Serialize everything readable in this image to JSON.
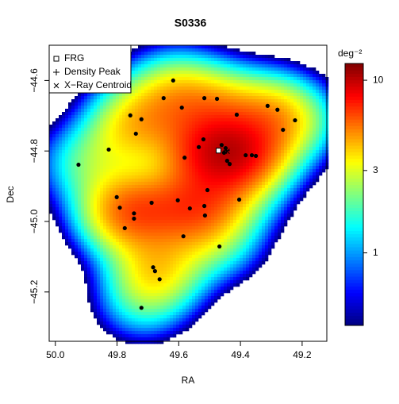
{
  "chart_data": {
    "type": "density_scatter",
    "title": "S0336",
    "xlabel": "RA",
    "ylabel": "Dec",
    "xlim": [
      50.02,
      49.12
    ],
    "ylim": [
      -45.34,
      -44.5
    ],
    "xticks": [
      {
        "value": 50.0,
        "label": "50.0"
      },
      49.8,
      49.6,
      49.4,
      49.2
    ],
    "yticks": [
      {
        "value": -44.6,
        "label": "−44.6"
      },
      {
        "value": -44.8,
        "label": "−44.8"
      },
      {
        "value": -45.0,
        "label": "−45.0"
      },
      {
        "value": -45.2,
        "label": "−45.2"
      }
    ],
    "points": {
      "color": "#000000",
      "x": [
        49.618,
        49.649,
        49.517,
        49.476,
        49.59,
        49.757,
        49.721,
        49.739,
        49.827,
        49.925,
        49.412,
        49.312,
        49.28,
        49.223,
        49.262,
        49.52,
        49.535,
        49.581,
        49.461,
        49.448,
        49.453,
        49.443,
        49.435,
        49.383,
        49.363,
        49.35,
        49.507,
        49.801,
        49.791,
        49.603,
        49.688,
        49.745,
        49.745,
        49.564,
        49.517,
        49.404,
        49.515,
        49.775,
        49.585,
        49.468,
        49.683,
        49.677,
        49.662,
        49.721
      ],
      "y": [
        -44.6,
        -44.65,
        -44.65,
        -44.652,
        -44.677,
        -44.699,
        -44.71,
        -44.751,
        -44.796,
        -44.839,
        -44.697,
        -44.672,
        -44.683,
        -44.713,
        -44.74,
        -44.767,
        -44.789,
        -44.819,
        -44.783,
        -44.792,
        -44.805,
        -44.828,
        -44.837,
        -44.812,
        -44.812,
        -44.814,
        -44.911,
        -44.931,
        -44.961,
        -44.94,
        -44.947,
        -44.977,
        -44.992,
        -44.963,
        -44.956,
        -44.938,
        -44.983,
        -45.019,
        -45.042,
        -45.071,
        -45.13,
        -45.141,
        -45.164,
        -45.245
      ]
    },
    "markers": [
      {
        "name": "FRG",
        "symbol": "square",
        "x": 49.471,
        "y": -44.799
      },
      {
        "name": "Density Peak",
        "symbol": "plus",
        "x": 49.445,
        "y": -44.799
      },
      {
        "name": "X−Ray Centroid",
        "symbol": "cross",
        "x": 49.443,
        "y": -44.801
      }
    ],
    "legend": "top-left",
    "colorbar": {
      "label": "deg⁻²",
      "scale": "log",
      "clim": [
        0.38,
        12.5
      ],
      "ticks": [
        1,
        3,
        10
      ]
    }
  }
}
